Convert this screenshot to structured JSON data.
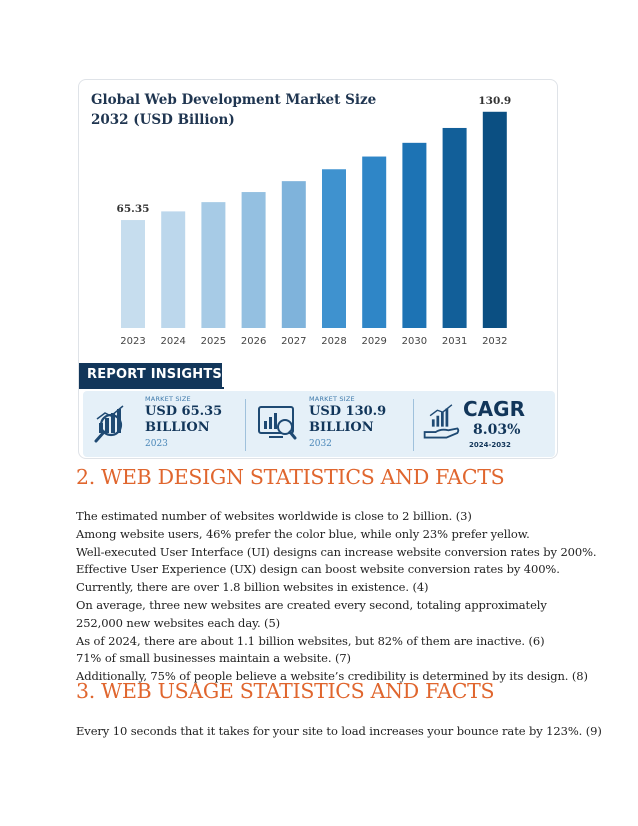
{
  "infographic": {
    "title_lines": [
      "Global Web Development Market Size",
      "2032 (USD Billion)"
    ],
    "report_insights_label": "REPORT INSIGHTS",
    "stats": [
      {
        "caption": "MARKET SIZE",
        "value_line1": "USD 65.35",
        "value_line2": "BILLION",
        "year": "2023",
        "icon": "chart-magnifier-icon"
      },
      {
        "caption": "MARKET SIZE",
        "value_line1": "USD 130.9",
        "value_line2": "BILLION",
        "year": "2032",
        "icon": "monitor-analytics-icon"
      },
      {
        "title": "CAGR",
        "value": "8.03%",
        "years": "2024-2032",
        "icon": "growth-hand-icon"
      }
    ]
  },
  "chart_data": {
    "type": "bar",
    "title": "Global Web Development Market Size 2032 (USD Billion)",
    "categories": [
      "2023",
      "2024",
      "2025",
      "2026",
      "2027",
      "2028",
      "2029",
      "2030",
      "2031",
      "2032"
    ],
    "values": [
      65.35,
      70.6,
      76.2,
      82.3,
      88.9,
      96.1,
      103.8,
      112.1,
      121.1,
      130.9
    ],
    "data_labels": {
      "0": "65.35",
      "9": "130.9"
    },
    "colors": [
      "#c6ddee",
      "#bcd7ec",
      "#a7cbe6",
      "#94c0e1",
      "#7fb3db",
      "#3f92cf",
      "#2f86c7",
      "#1d73b4",
      "#125f99",
      "#0b4f82"
    ],
    "ylim": [
      0,
      135
    ],
    "grid": false
  },
  "sections": [
    {
      "heading": "2. WEB DESIGN STATISTICS AND FACTS",
      "lines": [
        "The estimated number of websites worldwide is close to 2 billion. (3)",
        "Among website users, 46% prefer the color blue, while only 23% prefer yellow.",
        "Well-executed User Interface (UI) designs can increase website conversion rates by 200%.",
        "Effective User Experience (UX) design can boost website conversion rates by 400%.",
        "Currently, there are over 1.8 billion websites in existence. (4)",
        "On average, three new websites are created every second, totaling approximately 252,000 new websites each day. (5)",
        "As of 2024, there are about 1.1 billion websites, but 82% of them are inactive. (6)",
        "71% of small businesses maintain a website. (7)",
        "Additionally, 75% of people believe a website’s credibility is determined by its design. (8)"
      ]
    },
    {
      "heading": "3. WEB USAGE STATISTICS AND FACTS",
      "lines": [
        "Every 10 seconds that it takes for your site to load increases your bounce rate by 123%. (9)"
      ]
    }
  ]
}
